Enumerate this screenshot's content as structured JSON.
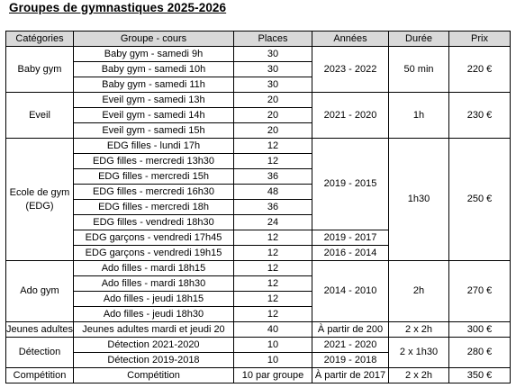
{
  "title": "Groupes de gymnastiques 2025-2026",
  "columns": [
    "Catégories",
    "Groupe - cours",
    "Places",
    "Années",
    "Durée",
    "Prix"
  ],
  "categories": {
    "baby": "Baby gym",
    "eveil": "Eveil",
    "edg_line1": "Ecole de gym",
    "edg_line2": "(EDG)",
    "ado": "Ado gym",
    "jeunes": "Jeunes adultes",
    "detection": "Détection",
    "competition": "Compétition"
  },
  "rows": [
    {
      "groupe": "Baby gym - samedi 9h",
      "places": "30"
    },
    {
      "groupe": "Baby gym - samedi 10h",
      "places": "30"
    },
    {
      "groupe": "Baby gym - samedi 11h",
      "places": "30"
    },
    {
      "groupe": "Eveil gym - samedi 13h",
      "places": "20"
    },
    {
      "groupe": "Eveil gym - samedi 14h",
      "places": "20"
    },
    {
      "groupe": "Eveil gym - samedi 15h",
      "places": "20"
    },
    {
      "groupe": "EDG filles - lundi 17h",
      "places": "12"
    },
    {
      "groupe": "EDG filles - mercredi 13h30",
      "places": "12"
    },
    {
      "groupe": "EDG filles - mercredi 15h",
      "places": "36"
    },
    {
      "groupe": "EDG filles - mercredi 16h30",
      "places": "48"
    },
    {
      "groupe": "EDG filles - mercredi 18h",
      "places": "36"
    },
    {
      "groupe": "EDG filles - vendredi 18h30",
      "places": "24"
    },
    {
      "groupe": "EDG garçons - vendredi 17h45",
      "places": "12"
    },
    {
      "groupe": "EDG garçons - vendredi 19h15",
      "places": "12"
    },
    {
      "groupe": "Ado filles - mardi 18h15",
      "places": "12"
    },
    {
      "groupe": "Ado filles - mardi 18h30",
      "places": "12"
    },
    {
      "groupe": "Ado filles - jeudi 18h15",
      "places": "12"
    },
    {
      "groupe": "Ado filles  - jeudi 18h30",
      "places": "12"
    },
    {
      "groupe": "Jeunes adultes mardi et jeudi 20",
      "places": "40"
    },
    {
      "groupe": "Détection 2021-2020",
      "places": "10"
    },
    {
      "groupe": "Détection 2019-2018",
      "places": "10"
    },
    {
      "groupe": "Compétition",
      "places": "10 par groupe"
    }
  ],
  "annees": {
    "baby": "2023 - 2022",
    "eveil": "2021 - 2020",
    "edg_filles": "2019 - 2015",
    "edg_garcons_1": "2019 - 2017",
    "edg_garcons_2": "2016 - 2014",
    "ado": "2014 - 2010",
    "jeunes": "À partir de 200",
    "detection_1": "2021 - 2020",
    "detection_2": "2019 - 2018",
    "competition": "À partir de 2017"
  },
  "duree": {
    "baby": "50 min",
    "eveil": "1h",
    "edg": "1h30",
    "ado": "2h",
    "jeunes": "2 x 2h",
    "detection": "2 x 1h30",
    "competition": "2 x 2h"
  },
  "prix": {
    "baby": "220 €",
    "eveil": "230 €",
    "edg": "250 €",
    "ado": "270 €",
    "jeunes": "300 €",
    "detection": "280 €",
    "competition": "350 €"
  }
}
